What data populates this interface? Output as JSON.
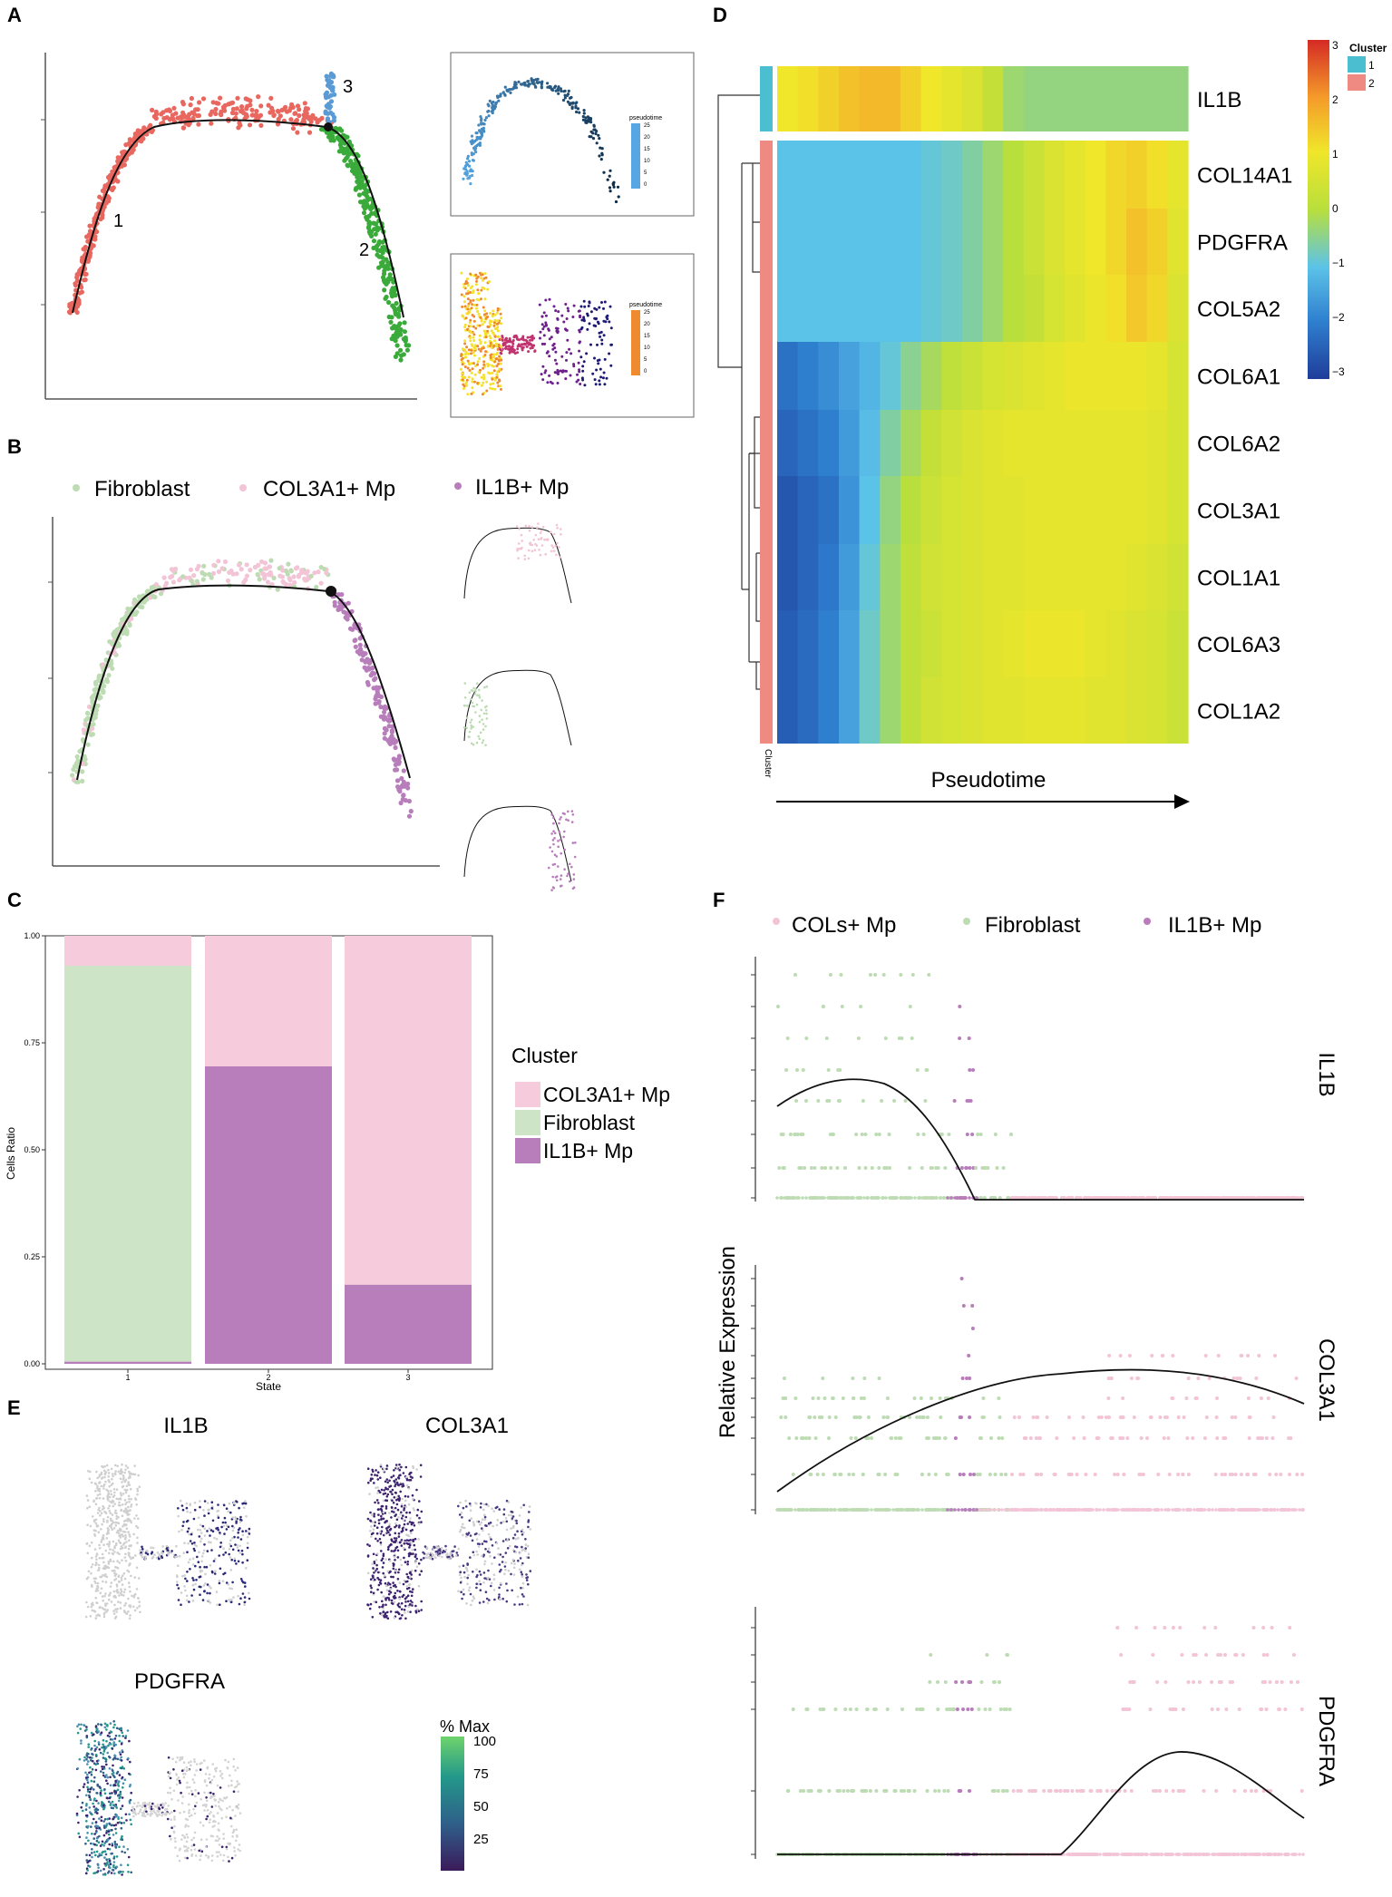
{
  "panels": {
    "A": {
      "label": "A",
      "branch_labels": [
        "1",
        "2",
        "3"
      ],
      "states": [
        {
          "name": "1",
          "color": "#e8675f"
        },
        {
          "name": "2",
          "color": "#3aaa3a"
        },
        {
          "name": "3",
          "color": "#5b9bd5"
        }
      ],
      "inset_top": {
        "legend_title": "pseudotime",
        "ticks": [
          "25",
          "20",
          "15",
          "10",
          "5",
          "0"
        ],
        "color_low": "#0d2a45",
        "color_high": "#56a6e3"
      },
      "inset_bottom": {
        "legend_title": "pseudotime",
        "ticks": [
          "25",
          "20",
          "15",
          "10",
          "5",
          "0"
        ],
        "colors": [
          "#f5e12b",
          "#ef8a2e",
          "#c0336e",
          "#6d1f8b",
          "#1e1a73"
        ]
      }
    },
    "B": {
      "label": "B",
      "legend": [
        {
          "label": "Fibroblast",
          "color": "#bddcb3"
        },
        {
          "label": "COL3A1+ Mp",
          "color": "#f2c4d6"
        },
        {
          "label": "IL1B+ Mp",
          "color": "#b87dbb"
        }
      ]
    },
    "C": {
      "label": "C",
      "legend_title": "Cluster",
      "legend": [
        {
          "label": "COL3A1+ Mp",
          "color": "#f6cbdc"
        },
        {
          "label": "Fibroblast",
          "color": "#cde5c6"
        },
        {
          "label": "IL1B+ Mp",
          "color": "#b87dbb"
        }
      ]
    },
    "D": {
      "label": "D",
      "side_label": "Cluster",
      "axis_label": "Pseudotime",
      "legend_title": "Cluster",
      "cluster_legend": [
        {
          "name": "1",
          "color": "#4bbfcf"
        },
        {
          "name": "2",
          "color": "#ef8a82"
        }
      ],
      "scale_ticks": [
        "3",
        "2",
        "1",
        "0",
        "−1",
        "−2",
        "−3"
      ],
      "genes": [
        "IL1B",
        "COL14A1",
        "PDGFRA",
        "COL5A2",
        "COL6A1",
        "COL6A2",
        "COL3A1",
        "COL1A1",
        "COL6A3",
        "COL1A2"
      ]
    },
    "E": {
      "label": "E",
      "titles": [
        "IL1B",
        "COL3A1",
        "PDGFRA"
      ],
      "legend_title": "% Max",
      "legend_ticks": [
        "100",
        "75",
        "50",
        "25"
      ]
    },
    "F": {
      "label": "F",
      "ylabel": "Relative Expression",
      "legend": [
        {
          "label": "COLs+ Mp",
          "color": "#f2c4d6"
        },
        {
          "label": "Fibroblast",
          "color": "#bddcb3"
        },
        {
          "label": "IL1B+ Mp",
          "color": "#b87dbb"
        }
      ],
      "genes": [
        "IL1B",
        "COL3A1",
        "PDGFRA"
      ]
    }
  },
  "chart_data": [
    {
      "type": "bar",
      "panel": "C",
      "title": "",
      "xlabel": "State",
      "ylabel": "Cells Ratio",
      "categories": [
        "1",
        "2",
        "3"
      ],
      "ylim": [
        0,
        1
      ],
      "yticks": [
        "0.00",
        "0.25",
        "0.50",
        "0.75",
        "1.00"
      ],
      "stacked": true,
      "series": [
        {
          "name": "IL1B+ Mp",
          "color": "#b87dbb",
          "values": [
            0.005,
            0.695,
            0.185
          ]
        },
        {
          "name": "Fibroblast",
          "color": "#cde5c6",
          "values": [
            0.925,
            0.0,
            0.0
          ]
        },
        {
          "name": "COL3A1+ Mp",
          "color": "#f6cbdc",
          "values": [
            0.07,
            0.305,
            0.815
          ]
        }
      ]
    },
    {
      "type": "heatmap",
      "panel": "D",
      "xlabel": "Pseudotime",
      "rows": [
        "IL1B",
        "COL14A1",
        "PDGFRA",
        "COL5A2",
        "COL6A1",
        "COL6A2",
        "COL3A1",
        "COL1A1",
        "COL6A3",
        "COL1A2"
      ],
      "row_clusters": [
        1,
        2,
        2,
        2,
        2,
        2,
        2,
        2,
        2,
        2
      ],
      "zlim": [
        -3,
        3
      ],
      "columns": 20,
      "values": [
        [
          1.0,
          1.1,
          1.3,
          1.5,
          1.6,
          1.6,
          1.3,
          1.0,
          0.8,
          0.6,
          0.2,
          -0.3,
          -0.4,
          -0.4,
          -0.4,
          -0.4,
          -0.4,
          -0.4,
          -0.4,
          -0.4
        ],
        [
          -1.0,
          -1.0,
          -1.0,
          -1.0,
          -1.0,
          -1.0,
          -1.0,
          -0.9,
          -0.8,
          -0.6,
          -0.3,
          0.0,
          0.3,
          0.6,
          0.8,
          1.0,
          1.2,
          1.3,
          1.1,
          0.8
        ],
        [
          -1.0,
          -1.0,
          -1.0,
          -1.0,
          -1.0,
          -1.0,
          -1.0,
          -0.9,
          -0.8,
          -0.6,
          -0.3,
          0.0,
          0.3,
          0.6,
          0.8,
          1.0,
          1.2,
          1.5,
          1.3,
          0.7
        ],
        [
          -1.0,
          -1.0,
          -1.0,
          -1.0,
          -1.0,
          -1.0,
          -1.0,
          -0.9,
          -0.8,
          -0.6,
          -0.3,
          0.0,
          0.2,
          0.5,
          0.7,
          0.9,
          1.1,
          1.4,
          1.2,
          0.6
        ],
        [
          -2.2,
          -2.0,
          -1.8,
          -1.5,
          -1.2,
          -0.9,
          -0.5,
          -0.2,
          0.1,
          0.3,
          0.5,
          0.6,
          0.7,
          0.8,
          0.9,
          0.9,
          0.9,
          0.9,
          0.8,
          0.5
        ],
        [
          -2.4,
          -2.2,
          -2.0,
          -1.6,
          -1.1,
          -0.6,
          -0.2,
          0.2,
          0.4,
          0.6,
          0.7,
          0.8,
          0.8,
          0.8,
          0.8,
          0.8,
          0.8,
          0.8,
          0.7,
          0.5
        ],
        [
          -2.6,
          -2.4,
          -2.2,
          -1.7,
          -1.0,
          -0.4,
          0.0,
          0.3,
          0.5,
          0.6,
          0.7,
          0.7,
          0.8,
          0.8,
          0.8,
          0.8,
          0.8,
          0.8,
          0.7,
          0.5
        ],
        [
          -2.6,
          -2.4,
          -2.1,
          -1.6,
          -0.9,
          -0.3,
          0.1,
          0.4,
          0.5,
          0.6,
          0.7,
          0.7,
          0.8,
          0.8,
          0.8,
          0.8,
          0.8,
          0.7,
          0.6,
          0.4
        ],
        [
          -2.5,
          -2.3,
          -2.0,
          -1.5,
          -0.8,
          -0.3,
          0.1,
          0.3,
          0.5,
          0.6,
          0.7,
          0.8,
          0.9,
          0.9,
          0.9,
          0.8,
          0.7,
          0.6,
          0.5,
          0.3
        ],
        [
          -2.5,
          -2.3,
          -2.0,
          -1.5,
          -0.8,
          -0.3,
          0.1,
          0.4,
          0.5,
          0.6,
          0.7,
          0.7,
          0.8,
          0.8,
          0.8,
          0.7,
          0.7,
          0.6,
          0.5,
          0.3
        ]
      ]
    }
  ]
}
